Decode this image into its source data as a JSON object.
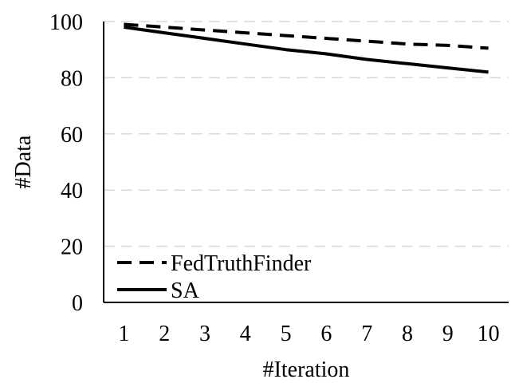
{
  "chart_data": {
    "type": "line",
    "title": "",
    "xlabel": "#Iteration",
    "ylabel": "#Data",
    "x": [
      1,
      2,
      3,
      4,
      5,
      6,
      7,
      8,
      9,
      10
    ],
    "xlim": [
      0.5,
      10.5
    ],
    "ylim": [
      0,
      100
    ],
    "yticks": [
      0,
      20,
      40,
      60,
      80,
      100
    ],
    "grid": "horizontal-dashed",
    "legend_position": "bottom-left",
    "series": [
      {
        "name": "FedTruthFinder",
        "style": "dashed",
        "color": "#000000",
        "values": [
          99,
          98,
          97,
          96,
          95,
          94,
          93,
          92,
          91.5,
          90.5
        ]
      },
      {
        "name": "SA",
        "style": "solid",
        "color": "#000000",
        "values": [
          98,
          96,
          94,
          92,
          90,
          88.5,
          86.5,
          85,
          83.5,
          82
        ]
      }
    ]
  },
  "colors": {
    "axis": "#000000",
    "grid": "#d9d9d9",
    "background": "#ffffff"
  }
}
